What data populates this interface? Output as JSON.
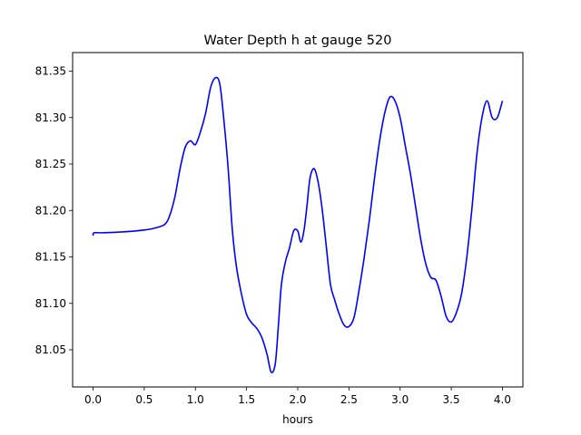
{
  "chart_data": {
    "type": "line",
    "title": "Water Depth h at gauge 520",
    "xlabel": "hours",
    "ylabel": "",
    "xlim": [
      -0.2,
      4.2
    ],
    "ylim": [
      81.01,
      81.37
    ],
    "xticks": [
      0.0,
      0.5,
      1.0,
      1.5,
      2.0,
      2.5,
      3.0,
      3.5,
      4.0
    ],
    "xtick_labels": [
      "0.0",
      "0.5",
      "1.0",
      "1.5",
      "2.0",
      "2.5",
      "3.0",
      "3.5",
      "4.0"
    ],
    "yticks": [
      81.05,
      81.1,
      81.15,
      81.2,
      81.25,
      81.3,
      81.35
    ],
    "ytick_labels": [
      "81.05",
      "81.10",
      "81.15",
      "81.20",
      "81.25",
      "81.30",
      "81.35"
    ],
    "grid": false,
    "legend": "none",
    "series": [
      {
        "color": "#0000ff",
        "x": [
          0.0,
          0.01,
          0.1,
          0.3,
          0.5,
          0.6,
          0.7,
          0.75,
          0.8,
          0.85,
          0.9,
          0.95,
          1.0,
          1.05,
          1.1,
          1.15,
          1.2,
          1.24,
          1.28,
          1.32,
          1.36,
          1.4,
          1.45,
          1.5,
          1.55,
          1.6,
          1.65,
          1.7,
          1.74,
          1.78,
          1.81,
          1.84,
          1.88,
          1.92,
          1.96,
          2.0,
          2.03,
          2.06,
          2.09,
          2.12,
          2.16,
          2.2,
          2.24,
          2.28,
          2.32,
          2.36,
          2.4,
          2.45,
          2.5,
          2.55,
          2.6,
          2.65,
          2.7,
          2.75,
          2.8,
          2.85,
          2.9,
          2.95,
          3.0,
          3.05,
          3.1,
          3.15,
          3.2,
          3.25,
          3.3,
          3.35,
          3.4,
          3.45,
          3.5,
          3.55,
          3.6,
          3.65,
          3.7,
          3.75,
          3.8,
          3.85,
          3.9,
          3.95,
          4.0
        ],
        "y": [
          81.173,
          81.176,
          81.176,
          81.177,
          81.179,
          81.181,
          81.185,
          81.195,
          81.215,
          81.245,
          81.268,
          81.275,
          81.271,
          81.285,
          81.305,
          81.333,
          81.343,
          81.335,
          81.295,
          81.245,
          81.18,
          81.14,
          81.11,
          81.088,
          81.079,
          81.073,
          81.063,
          81.045,
          81.026,
          81.035,
          81.075,
          81.12,
          81.145,
          81.16,
          81.178,
          81.178,
          81.166,
          81.178,
          81.205,
          81.235,
          81.245,
          81.23,
          81.2,
          81.16,
          81.12,
          81.104,
          81.09,
          81.077,
          81.075,
          81.085,
          81.115,
          81.15,
          81.19,
          81.235,
          81.275,
          81.305,
          81.322,
          81.318,
          81.3,
          81.27,
          81.24,
          81.205,
          81.17,
          81.143,
          81.128,
          81.125,
          81.108,
          81.086,
          81.08,
          81.09,
          81.11,
          81.148,
          81.2,
          81.26,
          81.3,
          81.318,
          81.3,
          81.3,
          81.318
        ]
      }
    ]
  }
}
